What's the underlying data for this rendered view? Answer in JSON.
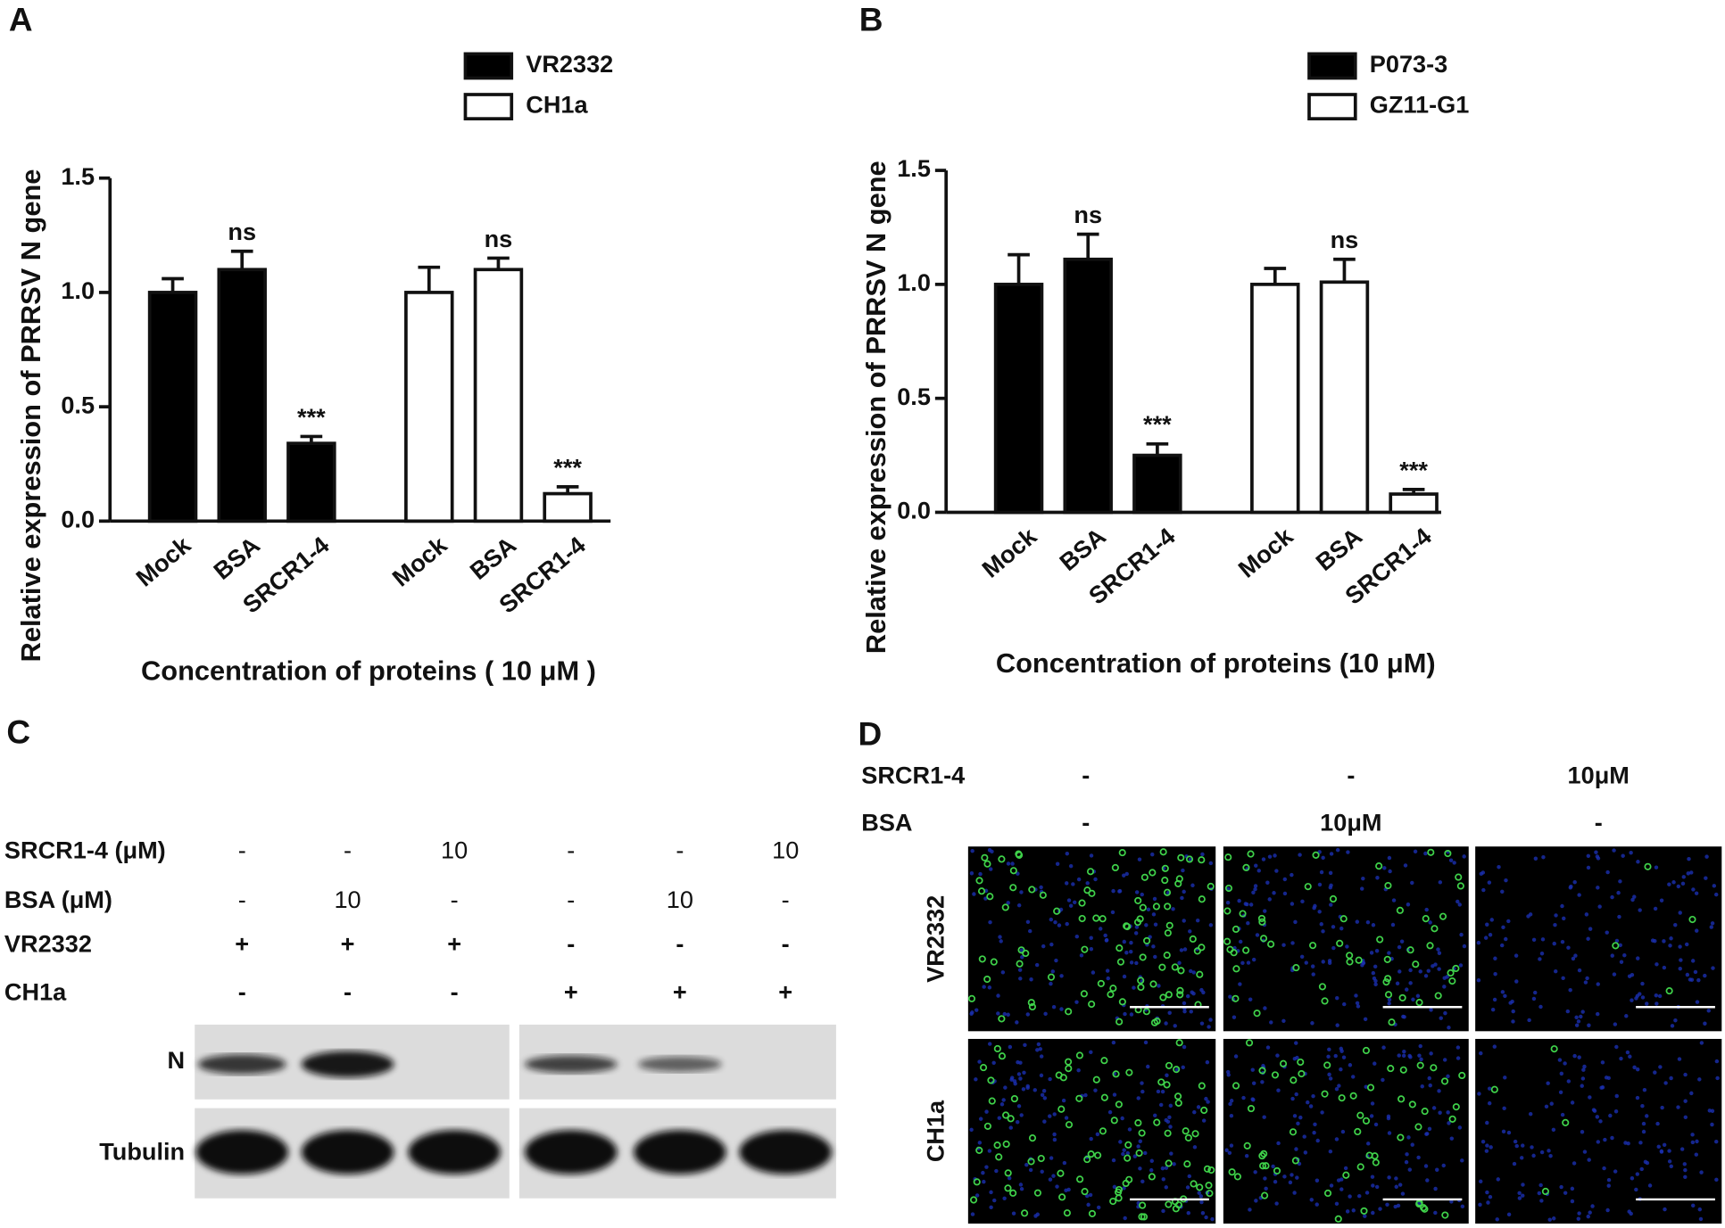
{
  "panel_labels": [
    "A",
    "B",
    "C",
    "D"
  ],
  "chart_data": [
    {
      "type": "bar",
      "y_label": "Relative expression of PRRSV N gene",
      "x_label": "Concentration of proteins ( 10 μM )",
      "categories": [
        "Mock",
        "BSA",
        "SRCR1-4",
        "Mock",
        "BSA",
        "SRCR1-4"
      ],
      "series": [
        {
          "name": "VR2332",
          "color": "#000000",
          "values": [
            1.0,
            1.1,
            0.34,
            null,
            null,
            null
          ],
          "errors": [
            0.06,
            0.08,
            0.03,
            null,
            null,
            null
          ],
          "annotations": [
            null,
            "ns",
            "***",
            null,
            null,
            null
          ]
        },
        {
          "name": "CH1a",
          "color": "#ffffff",
          "values": [
            null,
            null,
            null,
            1.0,
            1.1,
            0.12
          ],
          "errors": [
            null,
            null,
            null,
            0.11,
            0.05,
            0.03
          ],
          "annotations": [
            null,
            null,
            null,
            null,
            "ns",
            "***"
          ]
        }
      ],
      "ylim": [
        0,
        1.5
      ],
      "yticks": [
        {
          "value": 0,
          "label": "0.0"
        },
        0.5,
        {
          "value": 1,
          "label": "1.0"
        },
        1.5
      ],
      "legend": "top-right"
    },
    {
      "type": "bar",
      "y_label": "Relative expression of PRRSV N gene",
      "x_label": "Concentration of proteins (10 μM)",
      "categories": [
        "Mock",
        "BSA",
        "SRCR1-4",
        "Mock",
        "BSA",
        "SRCR1-4"
      ],
      "series": [
        {
          "name": "P073-3",
          "color": "#000000",
          "values": [
            1.0,
            1.11,
            0.25,
            null,
            null,
            null
          ],
          "errors": [
            0.13,
            0.11,
            0.05,
            null,
            null,
            null
          ],
          "annotations": [
            null,
            "ns",
            "***",
            null,
            null,
            null
          ]
        },
        {
          "name": "GZ11-G1",
          "color": "#ffffff",
          "values": [
            null,
            null,
            null,
            1.0,
            1.01,
            0.08
          ],
          "errors": [
            null,
            null,
            null,
            0.07,
            0.1,
            0.02
          ],
          "annotations": [
            null,
            null,
            null,
            null,
            "ns",
            "***"
          ]
        }
      ],
      "ylim": [
        0,
        1.5
      ],
      "yticks": [
        {
          "value": 0,
          "label": "0.0"
        },
        0.5,
        {
          "value": 1,
          "label": "1.0"
        },
        1.5
      ],
      "legend": "top-right"
    }
  ],
  "western_blot": {
    "conditions": [
      {
        "label": "SRCR1-4 (μM)",
        "values": [
          "-",
          "-",
          "10",
          "-",
          "-",
          "10"
        ]
      },
      {
        "label": "BSA (μM)",
        "values": [
          "-",
          "10",
          "-",
          "-",
          "10",
          "-"
        ]
      },
      {
        "label": "VR2332",
        "values": [
          "+",
          "+",
          "+",
          "-",
          "-",
          "-"
        ]
      },
      {
        "label": "CH1a",
        "values": [
          "-",
          "-",
          "-",
          "+",
          "+",
          "+"
        ]
      }
    ],
    "bands": [
      "N",
      "Tubulin"
    ]
  },
  "immunofluorescence": {
    "treatments": [
      {
        "label": "SRCR1-4",
        "values": [
          "-",
          "-",
          "10μM"
        ]
      },
      {
        "label": "BSA",
        "values": [
          "-",
          "10μM",
          "-"
        ]
      }
    ],
    "strains": [
      "VR2332",
      "CH1a"
    ]
  }
}
